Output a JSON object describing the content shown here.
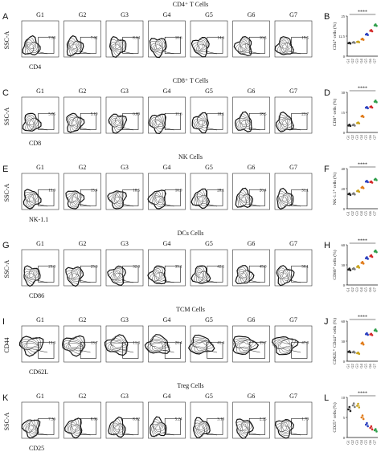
{
  "figure": {
    "rows": [
      {
        "letter_flow": "A",
        "letter_chart": "B",
        "section_title": "CD4⁺ T Cells",
        "flow_ylabel": "SSC-A",
        "flow_xlabel": "CD4",
        "gate_values": [
          "7.58",
          "7.62",
          "8.64",
          "10.6",
          "14.6",
          "16.3",
          "19.5"
        ],
        "chart_ylabel": "CD4⁺ cells (%)"
      },
      {
        "letter_flow": "C",
        "letter_chart": "D",
        "section_title": "CD8⁺ T Cells",
        "flow_ylabel": "SSC-A",
        "flow_xlabel": "CD8",
        "gate_values": [
          "5.05",
          "5.19",
          "6.89",
          "11.6",
          "18.1",
          "18.5",
          "23.7"
        ],
        "chart_ylabel": "CD8⁺ cells (%)"
      },
      {
        "letter_flow": "E",
        "letter_chart": "F",
        "section_title": "NK Cells",
        "flow_ylabel": "SSC-A",
        "flow_xlabel": "NK-1.1",
        "gate_values": [
          "15.0",
          "15.4",
          "18.5",
          "16.9",
          "28.1",
          "26.4",
          "31.1"
        ],
        "chart_ylabel": "NK-1.1⁺ cells (%)"
      },
      {
        "letter_flow": "G",
        "letter_chart": "H",
        "section_title": "DCs Cells",
        "flow_ylabel": "SSC-A",
        "flow_xlabel": "CD86",
        "gate_values": [
          "25.0",
          "25.0",
          "32.0",
          "35.1",
          "42.5",
          "45.0",
          "50.1"
        ],
        "chart_ylabel": "CD86⁺ cells (%)"
      },
      {
        "letter_flow": "I",
        "letter_chart": "J",
        "section_title": "TCM Cells",
        "flow_ylabel": "CD44",
        "flow_xlabel": "CD62L",
        "gate_values": [
          "13.3",
          "13.7",
          "11.3",
          "26.4",
          "41.4",
          "39.7",
          "47.8"
        ],
        "chart_ylabel": "CD62L⁺ CD44⁺ cells (%)"
      },
      {
        "letter_flow": "K",
        "letter_chart": "L",
        "section_title": "Treg Cells",
        "flow_ylabel": "SSC-A",
        "flow_xlabel": "CD25",
        "gate_values": [
          "7.36",
          "8.06",
          "8.02",
          "5.24",
          "3.18",
          "2.25",
          "1.79"
        ],
        "chart_ylabel": "CD25⁺ cells (%)"
      }
    ],
    "groups": [
      "G1",
      "G2",
      "G3",
      "G4",
      "G5",
      "G6",
      "G7"
    ],
    "significance": "****",
    "group_colors": [
      "#222222",
      "#7a7a7a",
      "#c8a21a",
      "#e07b1a",
      "#2a3fbf",
      "#d42a2a",
      "#2e9e4a"
    ]
  },
  "chart_data": [
    {
      "type": "scatter",
      "panel": "B",
      "ylabel": "CD4⁺ cells (%)",
      "categories": [
        "G1",
        "G2",
        "G3",
        "G4",
        "G5",
        "G6",
        "G7"
      ],
      "ylim": [
        0,
        25
      ],
      "series": [
        {
          "values": [
            [
              8.1,
              8.4,
              7.9
            ],
            [
              8.5,
              8.8,
              8.3
            ],
            [
              8.9,
              9.1,
              8.7
            ],
            [
              10.5,
              10.9,
              10.2
            ],
            [
              13.5,
              14.0,
              13.2
            ],
            [
              15.8,
              16.3,
              15.5
            ],
            [
              19.2,
              19.8,
              18.9
            ]
          ]
        }
      ]
    },
    {
      "type": "scatter",
      "panel": "D",
      "ylabel": "CD8⁺ cells (%)",
      "categories": [
        "G1",
        "G2",
        "G3",
        "G4",
        "G5",
        "G6",
        "G7"
      ],
      "ylim": [
        0,
        30
      ],
      "series": [
        {
          "values": [
            [
              5.2,
              5.8,
              4.9
            ],
            [
              5.5,
              6.0,
              5.1
            ],
            [
              7.0,
              7.5,
              6.8
            ],
            [
              12.0,
              12.5,
              11.6
            ],
            [
              18.5,
              19.0,
              18.1
            ],
            [
              19.0,
              19.5,
              18.6
            ],
            [
              23.0,
              23.8,
              22.6
            ]
          ]
        }
      ]
    },
    {
      "type": "scatter",
      "panel": "F",
      "ylabel": "NK-1.1⁺ cells (%)",
      "categories": [
        "G1",
        "G2",
        "G3",
        "G4",
        "G5",
        "G6",
        "G7"
      ],
      "ylim": [
        0,
        40
      ],
      "series": [
        {
          "values": [
            [
              14.5,
              15.2,
              13.8
            ],
            [
              14.8,
              15.5,
              14.2
            ],
            [
              17.5,
              18.2,
              16.9
            ],
            [
              21.0,
              21.8,
              20.5
            ],
            [
              27.0,
              27.8,
              26.5
            ],
            [
              26.5,
              27.2,
              26.0
            ],
            [
              29.0,
              29.8,
              28.5
            ]
          ]
        }
      ]
    },
    {
      "type": "scatter",
      "panel": "H",
      "ylabel": "CD86⁺ cells (%)",
      "categories": [
        "G1",
        "G2",
        "G3",
        "G4",
        "G5",
        "G6",
        "G7"
      ],
      "ylim": [
        0,
        60
      ],
      "series": [
        {
          "values": [
            [
              23.0,
              24.5,
              22.0
            ],
            [
              24.0,
              25.0,
              23.5
            ],
            [
              27.0,
              28.5,
              26.0
            ],
            [
              33.0,
              34.5,
              32.0
            ],
            [
              40.0,
              41.5,
              39.0
            ],
            [
              43.0,
              44.5,
              42.0
            ],
            [
              50.0,
              51.5,
              49.0
            ]
          ]
        }
      ]
    },
    {
      "type": "scatter",
      "panel": "J",
      "ylabel": "CD62L⁺ CD44⁺ cells (%)",
      "categories": [
        "G1",
        "G2",
        "G3",
        "G4",
        "G5",
        "G6",
        "G7"
      ],
      "ylim": [
        0,
        60
      ],
      "series": [
        {
          "values": [
            [
              14.0,
              15.0,
              13.2
            ],
            [
              13.5,
              14.5,
              12.8
            ],
            [
              12.0,
              13.0,
              11.0
            ],
            [
              26.5,
              28.0,
              25.0
            ],
            [
              40.5,
              42.0,
              39.5
            ],
            [
              40.0,
              41.0,
              39.0
            ],
            [
              46.0,
              47.5,
              45.0
            ]
          ]
        }
      ]
    },
    {
      "type": "scatter",
      "panel": "L",
      "ylabel": "CD25⁺ cells (%)",
      "categories": [
        "G1",
        "G2",
        "G3",
        "G4",
        "G5",
        "G6",
        "G7"
      ],
      "ylim": [
        0,
        10
      ],
      "series": [
        {
          "values": [
            [
              7.0,
              7.6,
              6.6
            ],
            [
              8.0,
              8.5,
              7.6
            ],
            [
              7.9,
              8.4,
              7.5
            ],
            [
              5.0,
              5.5,
              4.6
            ],
            [
              3.2,
              3.6,
              2.8
            ],
            [
              2.4,
              2.8,
              2.0
            ],
            [
              1.8,
              2.1,
              1.5
            ]
          ]
        }
      ]
    }
  ]
}
